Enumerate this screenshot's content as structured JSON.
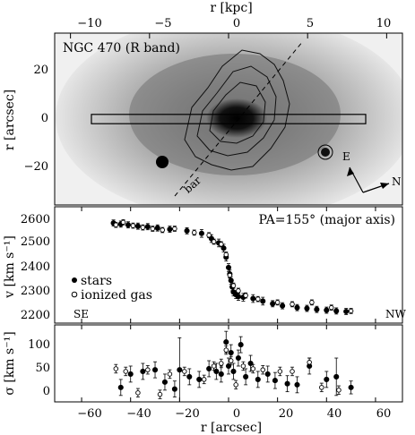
{
  "top_axis": {
    "label": "r [kpc]",
    "ticks": [
      "−10",
      "−5",
      "0",
      "5",
      "10"
    ]
  },
  "bottom_axis": {
    "label": "r [arcsec]",
    "ticks": [
      "−60",
      "−40",
      "−20",
      "0",
      "20",
      "40",
      "60"
    ]
  },
  "panels": {
    "image": {
      "title": "NGC 470 (R band)",
      "ylabel": "r [arcsec]",
      "yticks": [
        "20",
        "0",
        "−20"
      ],
      "bar_label": "bar",
      "compass": {
        "east": "E",
        "north": "N"
      }
    },
    "velocity": {
      "annotation": "PA=155° (major axis)",
      "ylabel": "v [km s⁻¹]",
      "yticks": [
        "2600",
        "2500",
        "2400",
        "2300",
        "2200"
      ],
      "legend": {
        "stars": "stars",
        "gas": "ionized gas"
      },
      "left_label": "SE",
      "right_label": "NW"
    },
    "dispersion": {
      "ylabel": "σ [km s⁻¹]",
      "yticks": [
        "100",
        "50",
        "0"
      ]
    }
  },
  "chart_data": [
    {
      "type": "image",
      "title": "NGC 470 (R band)",
      "xlabel": "r [kpc]",
      "ylabel": "r [arcsec]",
      "xlim_kpc": [
        -11,
        11
      ],
      "ylim": [
        -37,
        37
      ],
      "slit_half_width": 2,
      "slit_extent": [
        -56,
        56
      ]
    },
    {
      "type": "scatter",
      "annotation": "PA=155° (major axis)",
      "xlabel": "r [arcsec]",
      "ylabel": "v [km s⁻¹]",
      "xlim": [
        -71,
        71
      ],
      "ylim": [
        2165,
        2615
      ],
      "series": [
        {
          "name": "stars",
          "marker": "filled",
          "x": [
            -47,
            -44,
            -41,
            -37,
            -33,
            -29,
            -24,
            -17,
            -11,
            -7,
            -4,
            -2,
            -1,
            0,
            0.5,
            1,
            1.5,
            2,
            3,
            4,
            6,
            10,
            14,
            18,
            22,
            28,
            32,
            36,
            40,
            44,
            48
          ],
          "y": [
            2552,
            2548,
            2545,
            2540,
            2538,
            2533,
            2528,
            2522,
            2512,
            2492,
            2475,
            2455,
            2420,
            2380,
            2355,
            2330,
            2305,
            2285,
            2275,
            2268,
            2265,
            2260,
            2250,
            2240,
            2232,
            2225,
            2222,
            2218,
            2215,
            2212,
            2210
          ],
          "yerr": [
            12,
            12,
            12,
            12,
            12,
            12,
            12,
            12,
            15,
            15,
            15,
            15,
            15,
            15,
            15,
            15,
            15,
            15,
            15,
            15,
            15,
            15,
            15,
            12,
            12,
            12,
            12,
            12,
            12,
            12,
            12
          ]
        },
        {
          "name": "ionized gas",
          "marker": "open",
          "x": [
            -46,
            -43,
            -39,
            -35,
            -31,
            -27,
            -22,
            -14,
            -8,
            -6,
            -3,
            -1,
            0.5,
            2,
            4,
            7,
            12,
            20,
            26,
            34,
            42,
            50
          ],
          "y": [
            2545,
            2555,
            2542,
            2535,
            2530,
            2525,
            2530,
            2515,
            2505,
            2480,
            2470,
            2430,
            2350,
            2310,
            2290,
            2272,
            2258,
            2245,
            2238,
            2245,
            2225,
            2212
          ],
          "yerr": [
            10,
            10,
            10,
            10,
            10,
            10,
            10,
            10,
            10,
            10,
            10,
            10,
            10,
            10,
            10,
            10,
            10,
            10,
            10,
            10,
            10,
            10
          ]
        }
      ]
    },
    {
      "type": "scatter",
      "xlabel": "r [arcsec]",
      "ylabel": "σ [km s⁻¹]",
      "xlim": [
        -71,
        71
      ],
      "ylim": [
        -12,
        132
      ],
      "xticks": [
        -60,
        -40,
        -20,
        0,
        20,
        40,
        60
      ],
      "series": [
        {
          "name": "stars",
          "marker": "filled",
          "x": [
            -44,
            -40,
            -35,
            -30,
            -26,
            -22,
            -20,
            -16,
            -12,
            -8,
            -5,
            -3,
            -1,
            0,
            1,
            2,
            4,
            5,
            7,
            9,
            12,
            16,
            19,
            24,
            28,
            33,
            40,
            44,
            50
          ],
          "y": [
            15,
            40,
            45,
            48,
            25,
            12,
            48,
            35,
            30,
            50,
            45,
            40,
            100,
            55,
            80,
            45,
            70,
            95,
            35,
            60,
            30,
            40,
            28,
            22,
            20,
            55,
            30,
            35,
            15
          ],
          "yerr": [
            15,
            15,
            15,
            15,
            15,
            15,
            60,
            15,
            15,
            15,
            15,
            15,
            20,
            15,
            15,
            15,
            15,
            15,
            15,
            15,
            15,
            15,
            15,
            15,
            15,
            15,
            15,
            35,
            12
          ]
        },
        {
          "name": "ionized gas",
          "marker": "open",
          "x": [
            -46,
            -42,
            -37,
            -33,
            -28,
            -24,
            -18,
            -10,
            -6,
            -3,
            -1,
            1,
            3,
            6,
            10,
            14,
            21,
            26,
            33,
            38,
            45
          ],
          "y": [
            50,
            45,
            5,
            48,
            2,
            40,
            45,
            30,
            55,
            60,
            85,
            65,
            20,
            55,
            50,
            48,
            45,
            45,
            62,
            15,
            10
          ],
          "yerr": [
            8,
            8,
            8,
            8,
            8,
            8,
            8,
            8,
            8,
            8,
            8,
            8,
            8,
            8,
            8,
            8,
            8,
            8,
            8,
            8,
            8
          ]
        }
      ]
    }
  ]
}
